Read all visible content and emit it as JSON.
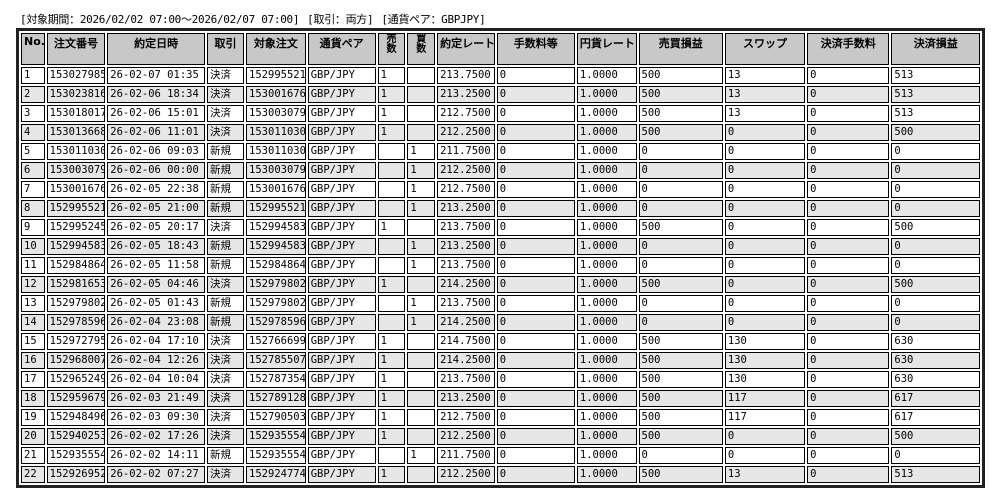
{
  "filter": {
    "period": "[対象期間：2026/02/02 07:00～2026/02/07 07:00]",
    "trade": "[取引：両方]",
    "pair": "[通貨ペア：GBPJPY]"
  },
  "table": {
    "headers": [
      "No.",
      "注文番号",
      "約定日時",
      "取引",
      "対象注文",
      "通貨ペア",
      "売\n数",
      "買\n数",
      "約定レート",
      "手数料等",
      "円貨レート",
      "売買損益",
      "スワップ",
      "決済手数料",
      "決済損益"
    ],
    "rows": [
      [
        "1",
        "153027985",
        "26-02-07 01:35",
        "決済",
        "152995521",
        "GBP/JPY",
        "1",
        "",
        "213.7500",
        "0",
        "1.0000",
        "500",
        "13",
        "0",
        "513"
      ],
      [
        "2",
        "153023816",
        "26-02-06 18:34",
        "決済",
        "153001676",
        "GBP/JPY",
        "1",
        "",
        "213.2500",
        "0",
        "1.0000",
        "500",
        "13",
        "0",
        "513"
      ],
      [
        "3",
        "153018017",
        "26-02-06 15:01",
        "決済",
        "153003079",
        "GBP/JPY",
        "1",
        "",
        "212.7500",
        "0",
        "1.0000",
        "500",
        "13",
        "0",
        "513"
      ],
      [
        "4",
        "153013668",
        "26-02-06 11:01",
        "決済",
        "153011030",
        "GBP/JPY",
        "1",
        "",
        "212.2500",
        "0",
        "1.0000",
        "500",
        "0",
        "0",
        "500"
      ],
      [
        "5",
        "153011030",
        "26-02-06 09:03",
        "新規",
        "153011030",
        "GBP/JPY",
        "",
        "1",
        "211.7500",
        "0",
        "1.0000",
        "0",
        "0",
        "0",
        "0"
      ],
      [
        "6",
        "153003079",
        "26-02-06 00:00",
        "新規",
        "153003079",
        "GBP/JPY",
        "",
        "1",
        "212.2500",
        "0",
        "1.0000",
        "0",
        "0",
        "0",
        "0"
      ],
      [
        "7",
        "153001676",
        "26-02-05 22:38",
        "新規",
        "153001676",
        "GBP/JPY",
        "",
        "1",
        "212.7500",
        "0",
        "1.0000",
        "0",
        "0",
        "0",
        "0"
      ],
      [
        "8",
        "152995521",
        "26-02-05 21:00",
        "新規",
        "152995521",
        "GBP/JPY",
        "",
        "1",
        "213.2500",
        "0",
        "1.0000",
        "0",
        "0",
        "0",
        "0"
      ],
      [
        "9",
        "152995245",
        "26-02-05 20:17",
        "決済",
        "152994583",
        "GBP/JPY",
        "1",
        "",
        "213.7500",
        "0",
        "1.0000",
        "500",
        "0",
        "0",
        "500"
      ],
      [
        "10",
        "152994583",
        "26-02-05 18:43",
        "新規",
        "152994583",
        "GBP/JPY",
        "",
        "1",
        "213.2500",
        "0",
        "1.0000",
        "0",
        "0",
        "0",
        "0"
      ],
      [
        "11",
        "152984864",
        "26-02-05 11:58",
        "新規",
        "152984864",
        "GBP/JPY",
        "",
        "1",
        "213.7500",
        "0",
        "1.0000",
        "0",
        "0",
        "0",
        "0"
      ],
      [
        "12",
        "152981653",
        "26-02-05 04:46",
        "決済",
        "152979802",
        "GBP/JPY",
        "1",
        "",
        "214.2500",
        "0",
        "1.0000",
        "500",
        "0",
        "0",
        "500"
      ],
      [
        "13",
        "152979802",
        "26-02-05 01:43",
        "新規",
        "152979802",
        "GBP/JPY",
        "",
        "1",
        "213.7500",
        "0",
        "1.0000",
        "0",
        "0",
        "0",
        "0"
      ],
      [
        "14",
        "152978596",
        "26-02-04 23:08",
        "新規",
        "152978596",
        "GBP/JPY",
        "",
        "1",
        "214.2500",
        "0",
        "1.0000",
        "0",
        "0",
        "0",
        "0"
      ],
      [
        "15",
        "152972795",
        "26-02-04 17:10",
        "決済",
        "152766699",
        "GBP/JPY",
        "1",
        "",
        "214.7500",
        "0",
        "1.0000",
        "500",
        "130",
        "0",
        "630"
      ],
      [
        "16",
        "152968007",
        "26-02-04 12:26",
        "決済",
        "152785507",
        "GBP/JPY",
        "1",
        "",
        "214.2500",
        "0",
        "1.0000",
        "500",
        "130",
        "0",
        "630"
      ],
      [
        "17",
        "152965249",
        "26-02-04 10:04",
        "決済",
        "152787354",
        "GBP/JPY",
        "1",
        "",
        "213.7500",
        "0",
        "1.0000",
        "500",
        "130",
        "0",
        "630"
      ],
      [
        "18",
        "152959679",
        "26-02-03 21:49",
        "決済",
        "152789128",
        "GBP/JPY",
        "1",
        "",
        "213.2500",
        "0",
        "1.0000",
        "500",
        "117",
        "0",
        "617"
      ],
      [
        "19",
        "152948496",
        "26-02-03 09:30",
        "決済",
        "152790503",
        "GBP/JPY",
        "1",
        "",
        "212.7500",
        "0",
        "1.0000",
        "500",
        "117",
        "0",
        "617"
      ],
      [
        "20",
        "152940253",
        "26-02-02 17:26",
        "決済",
        "152935554",
        "GBP/JPY",
        "1",
        "",
        "212.2500",
        "0",
        "1.0000",
        "500",
        "0",
        "0",
        "500"
      ],
      [
        "21",
        "152935554",
        "26-02-02 14:11",
        "新規",
        "152935554",
        "GBP/JPY",
        "",
        "1",
        "211.7500",
        "0",
        "1.0000",
        "0",
        "0",
        "0",
        "0"
      ],
      [
        "22",
        "152926952",
        "26-02-02 07:27",
        "決済",
        "152924774",
        "GBP/JPY",
        "1",
        "",
        "212.2500",
        "0",
        "1.0000",
        "500",
        "13",
        "0",
        "513"
      ]
    ]
  }
}
